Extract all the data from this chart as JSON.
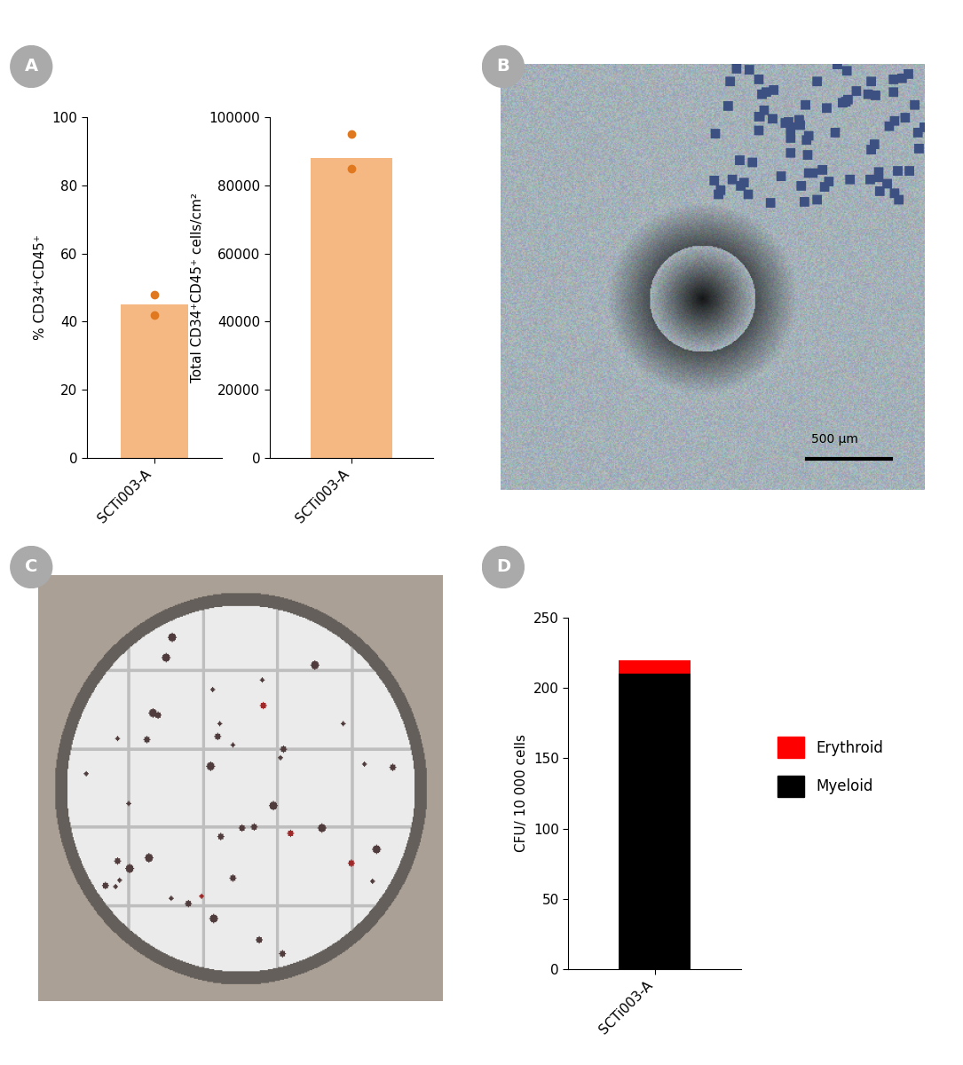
{
  "panel_A": {
    "bar1_value": 45,
    "bar1_ylim": [
      0,
      100
    ],
    "bar1_yticks": [
      0,
      20,
      40,
      60,
      80,
      100
    ],
    "bar1_ylabel": "% CD34⁺CD45⁺",
    "bar1_xlabel": "SCTi003-A",
    "bar1_dots": [
      48,
      42
    ],
    "bar2_value": 88000,
    "bar2_ylim": [
      0,
      100000
    ],
    "bar2_yticks": [
      0,
      20000,
      40000,
      60000,
      80000,
      100000
    ],
    "bar2_ylabel": "Total CD34⁺CD45⁺ cells/cm²",
    "bar2_xlabel": "SCTi003-A",
    "bar2_dots": [
      95000,
      85000
    ],
    "bar_color": "#F5B882",
    "dot_color": "#E07820"
  },
  "panel_D": {
    "myeloid_value": 210,
    "erythroid_value": 10,
    "ylim": [
      0,
      250
    ],
    "yticks": [
      0,
      50,
      100,
      150,
      200,
      250
    ],
    "ylabel": "CFU/ 10 000 cells",
    "xlabel": "SCTi003-A",
    "myeloid_color": "#000000",
    "erythroid_color": "#FF0000",
    "legend_erythroid": "Erythroid",
    "legend_myeloid": "Myeloid"
  },
  "label_circle_color": "#AAAAAA",
  "label_text_color": "#FFFFFF",
  "background_color": "#FFFFFF"
}
